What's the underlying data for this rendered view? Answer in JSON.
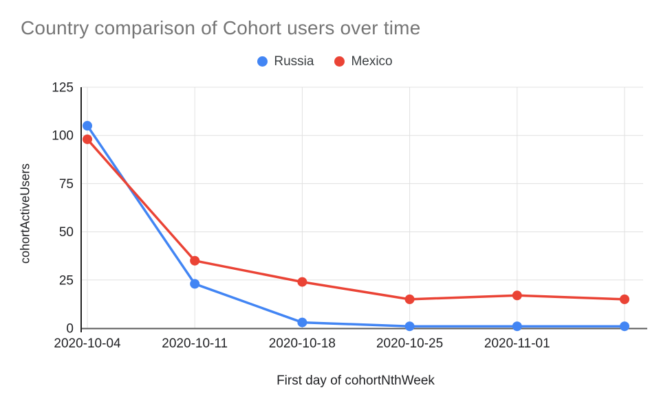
{
  "title": "Country comparison of Cohort users over time",
  "legend": {
    "items": [
      {
        "label": "Russia",
        "color": "#4285F4"
      },
      {
        "label": "Mexico",
        "color": "#EA4335"
      }
    ]
  },
  "chart_data": {
    "type": "line",
    "title": "Country comparison of Cohort users over time",
    "xlabel": "First day of cohortNthWeek",
    "ylabel": "cohortActiveUsers",
    "categories": [
      "2020-10-04",
      "2020-10-11",
      "2020-10-18",
      "2020-10-25",
      "2020-11-01",
      ""
    ],
    "series": [
      {
        "name": "Russia",
        "color": "#4285F4",
        "values": [
          105,
          23,
          3,
          1,
          1,
          1
        ]
      },
      {
        "name": "Mexico",
        "color": "#EA4335",
        "values": [
          98,
          35,
          24,
          15,
          17,
          15
        ]
      }
    ],
    "yticks": [
      0,
      25,
      50,
      75,
      100,
      125
    ],
    "ylim": [
      0,
      125
    ],
    "grid": true,
    "legend_position": "top"
  }
}
